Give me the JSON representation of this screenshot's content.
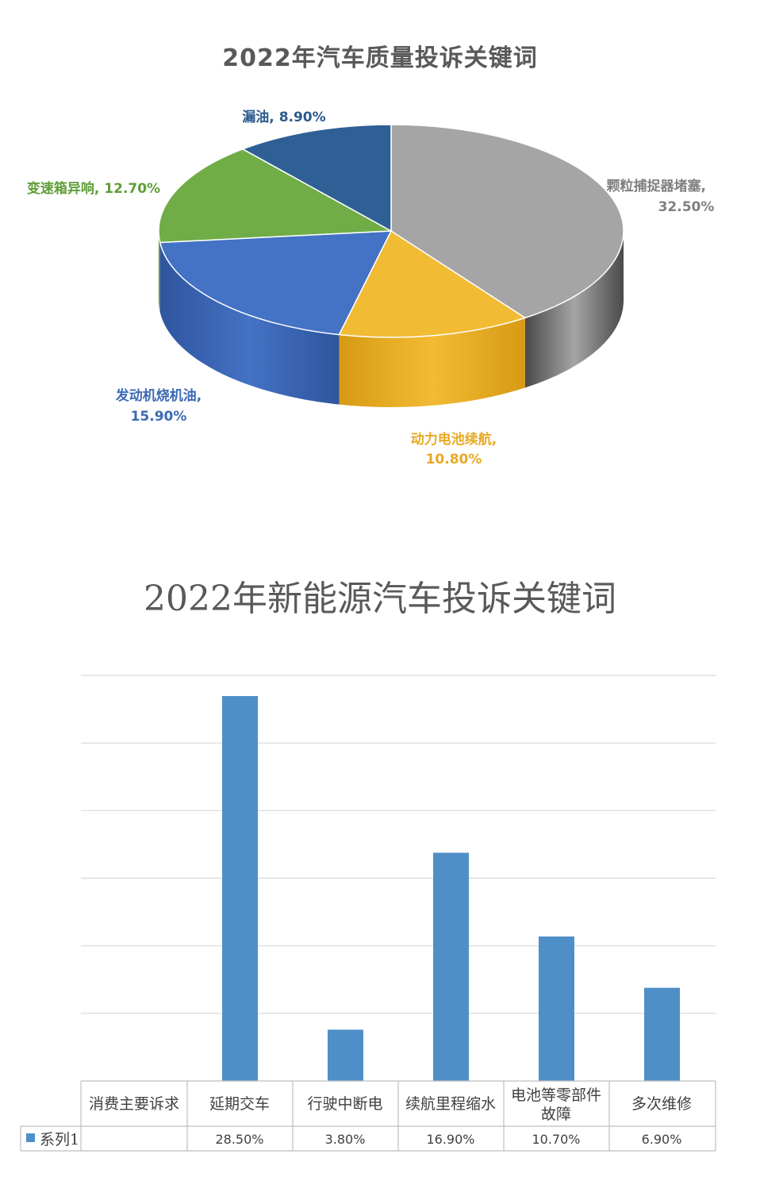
{
  "chart_data": [
    {
      "type": "pie",
      "title": "2022年汽车质量投诉关键词",
      "slices": [
        {
          "name": "颗粒捕捉器堵塞",
          "value": 32.5,
          "label": "颗粒捕捉器堵塞,",
          "value_label": "32.50%",
          "color": "#a5a5a5",
          "side_color": "#4a4a4a"
        },
        {
          "name": "动力电池续航",
          "value": 10.8,
          "label": "动力电池续航,",
          "value_label": "10.80%",
          "color": "#f2bb34",
          "side_color": "#d79a14"
        },
        {
          "name": "发动机烧机油",
          "value": 15.9,
          "label": "发动机烧机油,",
          "value_label": "15.90%",
          "color": "#4472c4",
          "side_color": "#2f559e"
        },
        {
          "name": "变速箱异响",
          "value": 12.7,
          "label": "变速箱异响, 12.70%",
          "value_label": "",
          "color": "#70ad47",
          "side_color": "#507d33"
        },
        {
          "name": "漏油",
          "value": 8.9,
          "label": "漏油, 8.90%",
          "value_label": "",
          "color": "#2e5f95",
          "side_color": "#1f4068"
        }
      ]
    },
    {
      "type": "bar",
      "title": "2022年新能源汽车投诉关键词",
      "category_header": "消费主要诉求",
      "categories": [
        "延期交车",
        "行驶中断电",
        "续航里程缩水",
        "电池等零部件故障",
        "多次维修"
      ],
      "series": [
        {
          "name": "系列1",
          "values": [
            28.5,
            3.8,
            16.9,
            10.7,
            6.9
          ],
          "value_labels": [
            "28.50%",
            "3.80%",
            "16.90%",
            "10.70%",
            "6.90%"
          ],
          "color": "#4f8fc7"
        }
      ],
      "ylim": [
        0,
        30
      ],
      "grid": true,
      "legend": "data-table"
    }
  ]
}
